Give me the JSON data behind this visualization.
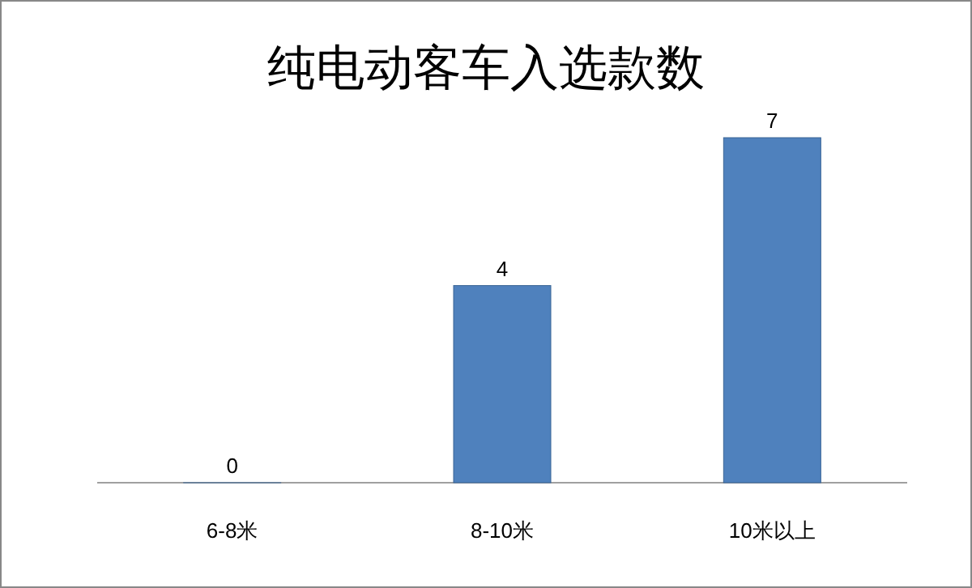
{
  "chart_data": {
    "type": "bar",
    "title": "纯电动客车入选款数",
    "categories": [
      "6-8米",
      "8-10米",
      "10米以上"
    ],
    "values": [
      0,
      4,
      7
    ],
    "color": "#4f81bd",
    "data_labels": true
  }
}
